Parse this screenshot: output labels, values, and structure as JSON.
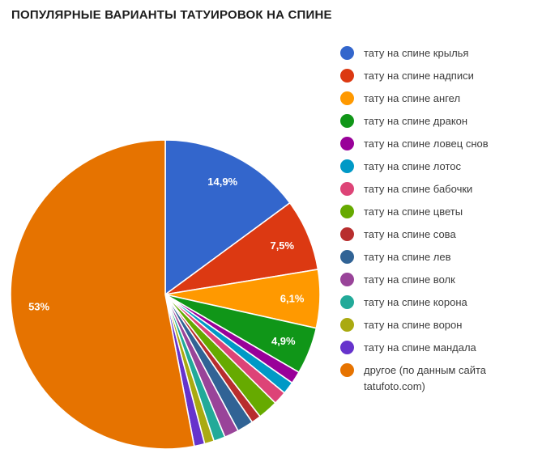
{
  "title": "ПОПУЛЯРНЫЕ ВАРИАНТЫ ТАТУИРОВОК НА СПИНЕ",
  "chart_data": {
    "type": "pie",
    "title": "ПОПУЛЯРНЫЕ ВАРИАНТЫ ТАТУИРОВОК НА СПИНЕ",
    "unit": "%",
    "total": 100,
    "start_angle_deg": 0,
    "direction": "clockwise",
    "legend_position": "right",
    "slice_label_color": "#ffffff",
    "slices": [
      {
        "label": "тату на спине крылья",
        "value": 14.9,
        "display": "14,9%",
        "color": "#3366CC"
      },
      {
        "label": "тату на спине надписи",
        "value": 7.5,
        "display": "7,5%",
        "color": "#DC3912"
      },
      {
        "label": "тату на спине ангел",
        "value": 6.1,
        "display": "6,1%",
        "color": "#FF9900"
      },
      {
        "label": "тату на спине дракон",
        "value": 4.9,
        "display": "4,9%",
        "color": "#109618"
      },
      {
        "label": "тату на спине ловец снов",
        "value": 1.3,
        "display": "",
        "color": "#990099"
      },
      {
        "label": "тату на спине лотос",
        "value": 1.3,
        "display": "",
        "color": "#0099C6"
      },
      {
        "label": "тату на спине бабочки",
        "value": 1.4,
        "display": "",
        "color": "#DD4477"
      },
      {
        "label": "тату на спине цветы",
        "value": 2.1,
        "display": "",
        "color": "#66AA00"
      },
      {
        "label": "тату на спине сова",
        "value": 1.0,
        "display": "",
        "color": "#B82E2E"
      },
      {
        "label": "тату на спине лев",
        "value": 1.7,
        "display": "",
        "color": "#316395"
      },
      {
        "label": "тату на спине волк",
        "value": 1.5,
        "display": "",
        "color": "#994499"
      },
      {
        "label": "тату на спине корона",
        "value": 1.2,
        "display": "",
        "color": "#22AA99"
      },
      {
        "label": "тату на спине ворон",
        "value": 1.0,
        "display": "",
        "color": "#AAAA11"
      },
      {
        "label": "тату на спине мандала",
        "value": 1.1,
        "display": "",
        "color": "#6633CC"
      },
      {
        "label": "другое (по данным сайта tatufoto.com)",
        "value": 53,
        "display": "53%",
        "color": "#E67300"
      }
    ]
  }
}
